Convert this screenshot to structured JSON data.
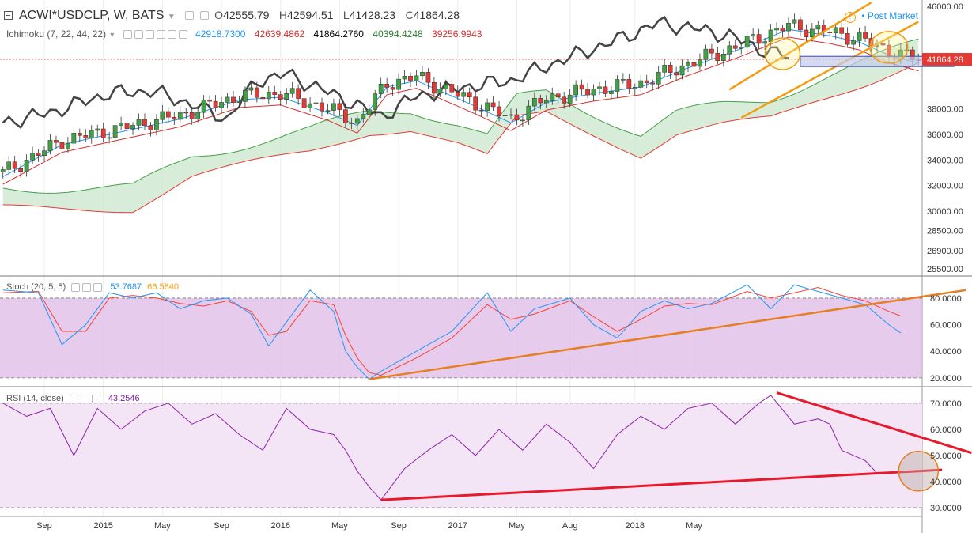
{
  "header": {
    "symbol": "ACWI*USDCLP, W, BATS",
    "o_label": "O",
    "o_value": "42555.79",
    "h_label": "H",
    "h_value": "42594.51",
    "l_label": "L",
    "l_value": "41428.23",
    "c_label": "C",
    "c_value": "41864.28",
    "post_market": "Post Market"
  },
  "ichimoku": {
    "label": "Ichimoku (7, 22, 44, 22)",
    "values": [
      "42918.7300",
      "42639.4862",
      "41864.2760",
      "40394.4248",
      "39256.9943"
    ],
    "colors": [
      "#2196f3",
      "#d32f2f",
      "#000000",
      "#2e7d32",
      "#d32f2f"
    ]
  },
  "stoch": {
    "label": "Stoch (20, 5, 5)",
    "k": "53.7687",
    "d": "66.5840"
  },
  "rsi": {
    "label": "RSI (14, close)",
    "value": "43.2546"
  },
  "price_axis": [
    "46000.00",
    "41864.28",
    "38000.00",
    "36000.00",
    "34000.00",
    "32000.00",
    "30000.00",
    "28500.00",
    "26900.00",
    "25500.00"
  ],
  "stoch_axis": [
    "80.0000",
    "60.0000",
    "40.0000",
    "20.0000"
  ],
  "rsi_axis": [
    "70.0000",
    "60.0000",
    "50.0000",
    "40.0000",
    "30.0000"
  ],
  "time_axis": [
    "Sep",
    "2015",
    "May",
    "Sep",
    "2016",
    "May",
    "Sep",
    "2017",
    "May",
    "Aug",
    "2018",
    "May"
  ],
  "colors": {
    "up": "#43a047",
    "down": "#e53935",
    "cloud_fill": "#c8e6c9",
    "stoch_fill": "#e1bee7",
    "rsi_fill": "#f3e5f5",
    "trend_orange": "#f39c12",
    "trend_red": "#e8192c",
    "stoch_k": "#2196f3",
    "stoch_d": "#f44336"
  },
  "chart_data": {
    "type": "candlestick",
    "price_range": [
      25000,
      46500
    ],
    "last_price": 41864.28,
    "price_points": [
      [
        0,
        33000
      ],
      [
        10,
        35500
      ],
      [
        20,
        36500
      ],
      [
        30,
        37500
      ],
      [
        40,
        39000
      ],
      [
        47,
        39200
      ],
      [
        55,
        38000
      ],
      [
        60,
        37000
      ],
      [
        65,
        40000
      ],
      [
        70,
        40500
      ],
      [
        75,
        39500
      ],
      [
        80,
        38500
      ],
      [
        86,
        37200
      ],
      [
        92,
        38800
      ],
      [
        100,
        39500
      ],
      [
        108,
        40000
      ],
      [
        116,
        41500
      ],
      [
        125,
        43000
      ],
      [
        133,
        44500
      ],
      [
        140,
        44000
      ],
      [
        145,
        43500
      ],
      [
        150,
        42500
      ],
      [
        155,
        41864
      ]
    ],
    "stoch_k_points": [
      [
        0,
        86
      ],
      [
        6,
        84
      ],
      [
        10,
        45
      ],
      [
        14,
        60
      ],
      [
        18,
        84
      ],
      [
        22,
        80
      ],
      [
        26,
        84
      ],
      [
        30,
        72
      ],
      [
        34,
        78
      ],
      [
        38,
        80
      ],
      [
        42,
        68
      ],
      [
        45,
        44
      ],
      [
        48,
        62
      ],
      [
        52,
        86
      ],
      [
        56,
        70
      ],
      [
        58,
        40
      ],
      [
        60,
        28
      ],
      [
        62,
        19
      ],
      [
        64,
        25
      ],
      [
        70,
        40
      ],
      [
        76,
        55
      ],
      [
        82,
        84
      ],
      [
        86,
        55
      ],
      [
        90,
        72
      ],
      [
        96,
        80
      ],
      [
        100,
        60
      ],
      [
        104,
        50
      ],
      [
        108,
        70
      ],
      [
        112,
        78
      ],
      [
        116,
        72
      ],
      [
        120,
        76
      ],
      [
        126,
        90
      ],
      [
        130,
        72
      ],
      [
        134,
        90
      ],
      [
        138,
        85
      ],
      [
        142,
        80
      ],
      [
        146,
        75
      ],
      [
        150,
        60
      ],
      [
        152,
        53.77
      ]
    ],
    "stoch_d_points": [
      [
        0,
        84
      ],
      [
        6,
        85
      ],
      [
        10,
        55
      ],
      [
        14,
        55
      ],
      [
        18,
        80
      ],
      [
        22,
        82
      ],
      [
        26,
        80
      ],
      [
        30,
        76
      ],
      [
        34,
        74
      ],
      [
        38,
        78
      ],
      [
        42,
        70
      ],
      [
        45,
        52
      ],
      [
        48,
        55
      ],
      [
        52,
        78
      ],
      [
        56,
        75
      ],
      [
        58,
        52
      ],
      [
        60,
        35
      ],
      [
        62,
        24
      ],
      [
        64,
        22
      ],
      [
        70,
        35
      ],
      [
        76,
        50
      ],
      [
        82,
        75
      ],
      [
        86,
        64
      ],
      [
        90,
        68
      ],
      [
        96,
        78
      ],
      [
        100,
        66
      ],
      [
        104,
        55
      ],
      [
        108,
        64
      ],
      [
        112,
        74
      ],
      [
        116,
        76
      ],
      [
        120,
        75
      ],
      [
        126,
        85
      ],
      [
        130,
        80
      ],
      [
        134,
        84
      ],
      [
        138,
        88
      ],
      [
        142,
        82
      ],
      [
        146,
        78
      ],
      [
        150,
        70
      ],
      [
        152,
        66.58
      ]
    ],
    "rsi_points": [
      [
        0,
        70
      ],
      [
        4,
        65
      ],
      [
        8,
        68
      ],
      [
        12,
        50
      ],
      [
        16,
        68
      ],
      [
        20,
        60
      ],
      [
        24,
        67
      ],
      [
        28,
        70
      ],
      [
        32,
        62
      ],
      [
        36,
        66
      ],
      [
        40,
        58
      ],
      [
        44,
        52
      ],
      [
        48,
        68
      ],
      [
        52,
        60
      ],
      [
        56,
        58
      ],
      [
        58,
        52
      ],
      [
        60,
        44
      ],
      [
        62,
        38
      ],
      [
        64,
        33
      ],
      [
        68,
        45
      ],
      [
        72,
        52
      ],
      [
        76,
        58
      ],
      [
        80,
        50
      ],
      [
        84,
        60
      ],
      [
        88,
        52
      ],
      [
        92,
        62
      ],
      [
        96,
        55
      ],
      [
        100,
        45
      ],
      [
        104,
        58
      ],
      [
        108,
        65
      ],
      [
        112,
        60
      ],
      [
        116,
        68
      ],
      [
        120,
        70
      ],
      [
        124,
        62
      ],
      [
        128,
        70
      ],
      [
        130,
        73
      ],
      [
        134,
        62
      ],
      [
        138,
        64
      ],
      [
        140,
        62
      ],
      [
        142,
        52
      ],
      [
        146,
        48
      ],
      [
        148,
        43.25
      ]
    ],
    "bar_count": 156,
    "series": [
      {
        "name": "Stoch %K",
        "value": 53.7687
      },
      {
        "name": "Stoch %D",
        "value": 66.584
      },
      {
        "name": "RSI",
        "value": 43.2546
      }
    ]
  }
}
